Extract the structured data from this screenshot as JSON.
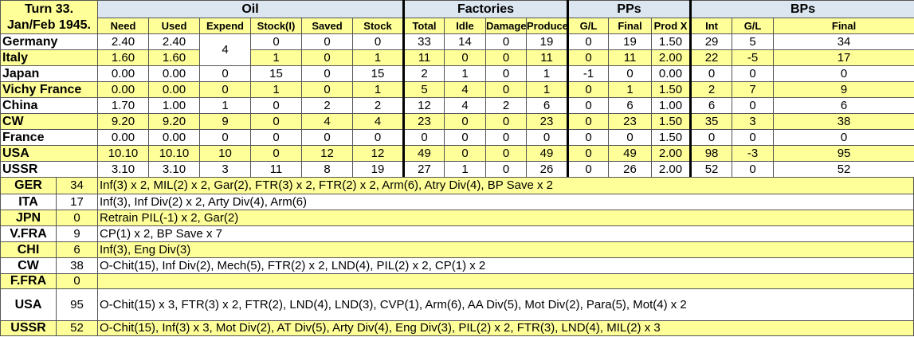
{
  "title_line1": "Turn 33.",
  "title_line2": "Jan/Feb 1945.",
  "groups": [
    "Oil",
    "Factories",
    "PPs",
    "BPs"
  ],
  "columns": [
    "Need",
    "Used",
    "Expend",
    "Stock(I)",
    "Saved",
    "Stock",
    "Total",
    "Idle",
    "Damage",
    "Produce",
    "G/L",
    "Final",
    "Prod X",
    "Int",
    "G/L",
    "Final"
  ],
  "colors": {
    "yellow": "#ffff99",
    "header_blue": "#dce6f1"
  },
  "rows": [
    {
      "name": "Germany",
      "values": [
        "2.40",
        "2.40",
        "4",
        "0",
        "0",
        "0",
        "33",
        "14",
        "0",
        "19",
        "0",
        "19",
        "1.50",
        "29",
        "5",
        "34"
      ]
    },
    {
      "name": "Italy",
      "values": [
        "1.60",
        "1.60",
        null,
        "1",
        "0",
        "1",
        "11",
        "0",
        "0",
        "11",
        "0",
        "11",
        "2.00",
        "22",
        "-5",
        "17"
      ]
    },
    {
      "name": "Japan",
      "values": [
        "0.00",
        "0.00",
        "0",
        "15",
        "0",
        "15",
        "2",
        "1",
        "0",
        "1",
        "-1",
        "0",
        "0.00",
        "0",
        "0",
        "0"
      ]
    },
    {
      "name": "Vichy France",
      "values": [
        "0.00",
        "0.00",
        "0",
        "1",
        "0",
        "1",
        "5",
        "4",
        "0",
        "1",
        "0",
        "1",
        "1.50",
        "2",
        "7",
        "9"
      ]
    },
    {
      "name": "China",
      "values": [
        "1.70",
        "1.00",
        "1",
        "0",
        "2",
        "2",
        "12",
        "4",
        "2",
        "6",
        "0",
        "6",
        "1.00",
        "6",
        "0",
        "6"
      ]
    },
    {
      "name": "CW",
      "values": [
        "9.20",
        "9.20",
        "9",
        "0",
        "4",
        "4",
        "23",
        "0",
        "0",
        "23",
        "0",
        "23",
        "1.50",
        "35",
        "3",
        "38"
      ]
    },
    {
      "name": "France",
      "values": [
        "0.00",
        "0.00",
        "0",
        "0",
        "0",
        "0",
        "0",
        "0",
        "0",
        "0",
        "0",
        "0",
        "1.50",
        "0",
        "0",
        "0"
      ]
    },
    {
      "name": "USA",
      "values": [
        "10.10",
        "10.10",
        "10",
        "0",
        "12",
        "12",
        "49",
        "0",
        "0",
        "49",
        "0",
        "49",
        "2.00",
        "98",
        "-3",
        "95"
      ]
    },
    {
      "name": "USSR",
      "values": [
        "3.10",
        "3.10",
        "3",
        "11",
        "8",
        "19",
        "27",
        "1",
        "0",
        "26",
        "0",
        "26",
        "2.00",
        "52",
        "0",
        "52"
      ]
    }
  ],
  "builds": [
    {
      "code": "GER",
      "bp": "34",
      "text": "Inf(3) x 2, MIL(2) x 2, Gar(2), FTR(3) x 2, FTR(2) x 2, Arm(6), Atry Div(4), BP Save x 2"
    },
    {
      "code": "ITA",
      "bp": "17",
      "text": "Inf(3), Inf Div(2) x 2, Arty Div(4), Arm(6)"
    },
    {
      "code": "JPN",
      "bp": "0",
      "text": "Retrain PIL(-1) x 2, Gar(2)"
    },
    {
      "code": "V.FRA",
      "bp": "9",
      "text": "CP(1) x 2, BP Save x 7"
    },
    {
      "code": "CHI",
      "bp": "6",
      "text": "Inf(3), Eng Div(3)"
    },
    {
      "code": "CW",
      "bp": "38",
      "text": "O-Chit(15), Inf Div(2), Mech(5), FTR(2) x 2, LND(4), PIL(2) x 2, CP(1) x 2"
    },
    {
      "code": "F.FRA",
      "bp": "0",
      "text": ""
    },
    {
      "code": "USA",
      "bp": "95",
      "text": "O-Chit(15) x 3, FTR(3) x 2, FTR(2), LND(4), LND(3), CVP(1), Arm(6), AA Div(5), Mot Div(2), Para(5), Mot(4) x 2"
    },
    {
      "code": "USSR",
      "bp": "52",
      "text": "O-Chit(15), Inf(3) x 3, Mot Div(2), AT Div(5), Arty Div(4), Eng Div(3), PIL(2) x 2, FTR(3), LND(4), MIL(2) x 3"
    }
  ]
}
